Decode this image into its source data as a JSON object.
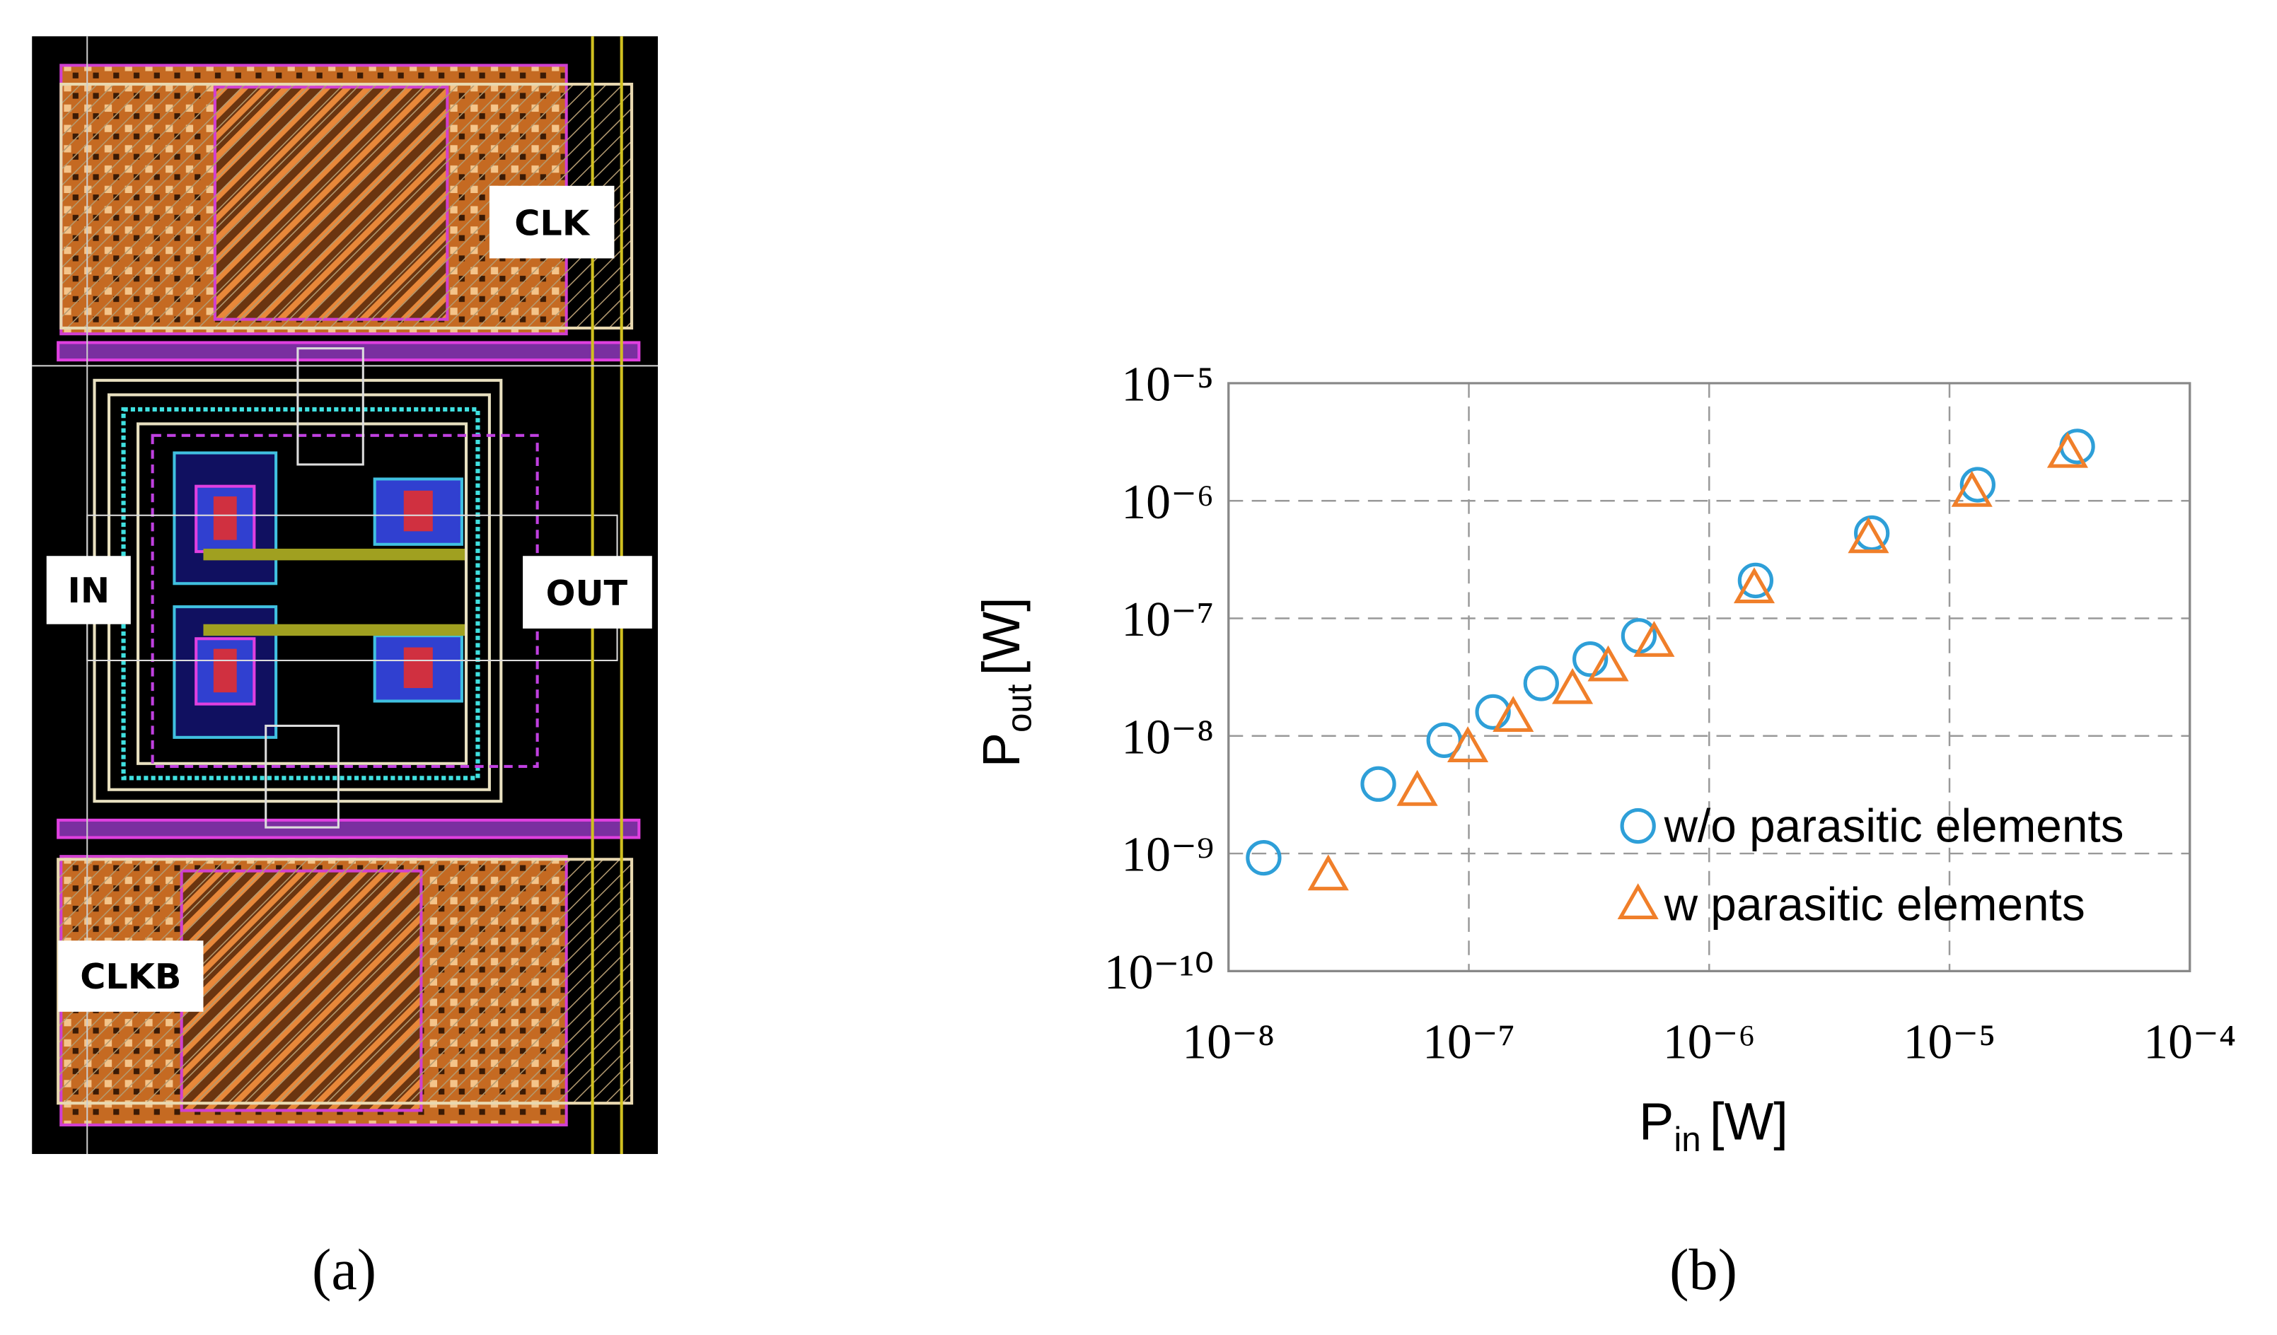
{
  "layout": {
    "labels": {
      "clk": "CLK",
      "in": "IN",
      "out": "OUT",
      "clkb": "CLKB"
    },
    "caption": "(a)"
  },
  "chart_data": {
    "type": "scatter",
    "caption": "(b)",
    "xlabel": {
      "symbol": "P",
      "subscript": "in",
      "unit": "[W]"
    },
    "ylabel": {
      "symbol": "P",
      "subscript": "out",
      "unit": "[W]"
    },
    "log_x": true,
    "log_y": true,
    "grid": true,
    "legend": "lower right",
    "xlim": [
      1e-08,
      0.0001
    ],
    "xticks": [
      {
        "value": 1e-08,
        "label": "10⁻⁸"
      },
      {
        "value": 1e-07,
        "label": "10⁻⁷"
      },
      {
        "value": 1e-06,
        "label": "10⁻⁶"
      },
      {
        "value": 1e-05,
        "label": "10⁻⁵"
      },
      {
        "value": 0.0001,
        "label": "10⁻⁴"
      }
    ],
    "ylim": [
      1e-10,
      1e-05
    ],
    "yticks": [
      {
        "value": 1e-10,
        "label": "10⁻¹⁰"
      },
      {
        "value": 1e-09,
        "label": "10⁻⁹"
      },
      {
        "value": 1e-08,
        "label": "10⁻⁸"
      },
      {
        "value": 1e-07,
        "label": "10⁻⁷"
      },
      {
        "value": 1e-06,
        "label": "10⁻⁶"
      },
      {
        "value": 1e-05,
        "label": "10⁻⁵"
      }
    ],
    "series": [
      {
        "name": "w/o parasitic elements",
        "color": "#2e9fd8",
        "marker": "circle",
        "x": [
          1.4e-08,
          4.2e-08,
          7.9e-08,
          1.26e-07,
          2e-07,
          3.2e-07,
          5.1e-07,
          1.56e-06,
          4.75e-06,
          1.31e-05,
          3.4e-05
        ],
        "values": [
          9.2e-10,
          3.9e-09,
          9.2e-09,
          1.6e-08,
          2.8e-08,
          4.5e-08,
          7.1e-08,
          2.1e-07,
          5.3e-07,
          1.37e-06,
          2.9e-06
        ]
      },
      {
        "name": "w parasitic elements",
        "color": "#f07f2a",
        "marker": "triangle",
        "x": [
          2.6e-08,
          6.1e-08,
          9.9e-08,
          1.53e-07,
          2.7e-07,
          3.8e-07,
          5.9e-07,
          1.54e-06,
          4.6e-06,
          1.24e-05,
          3.1e-05
        ],
        "values": [
          6.5e-10,
          3.4e-09,
          8e-09,
          1.45e-08,
          2.5e-08,
          3.9e-08,
          6.3e-08,
          1.8e-07,
          4.8e-07,
          1.19e-06,
          2.55e-06
        ]
      }
    ]
  }
}
